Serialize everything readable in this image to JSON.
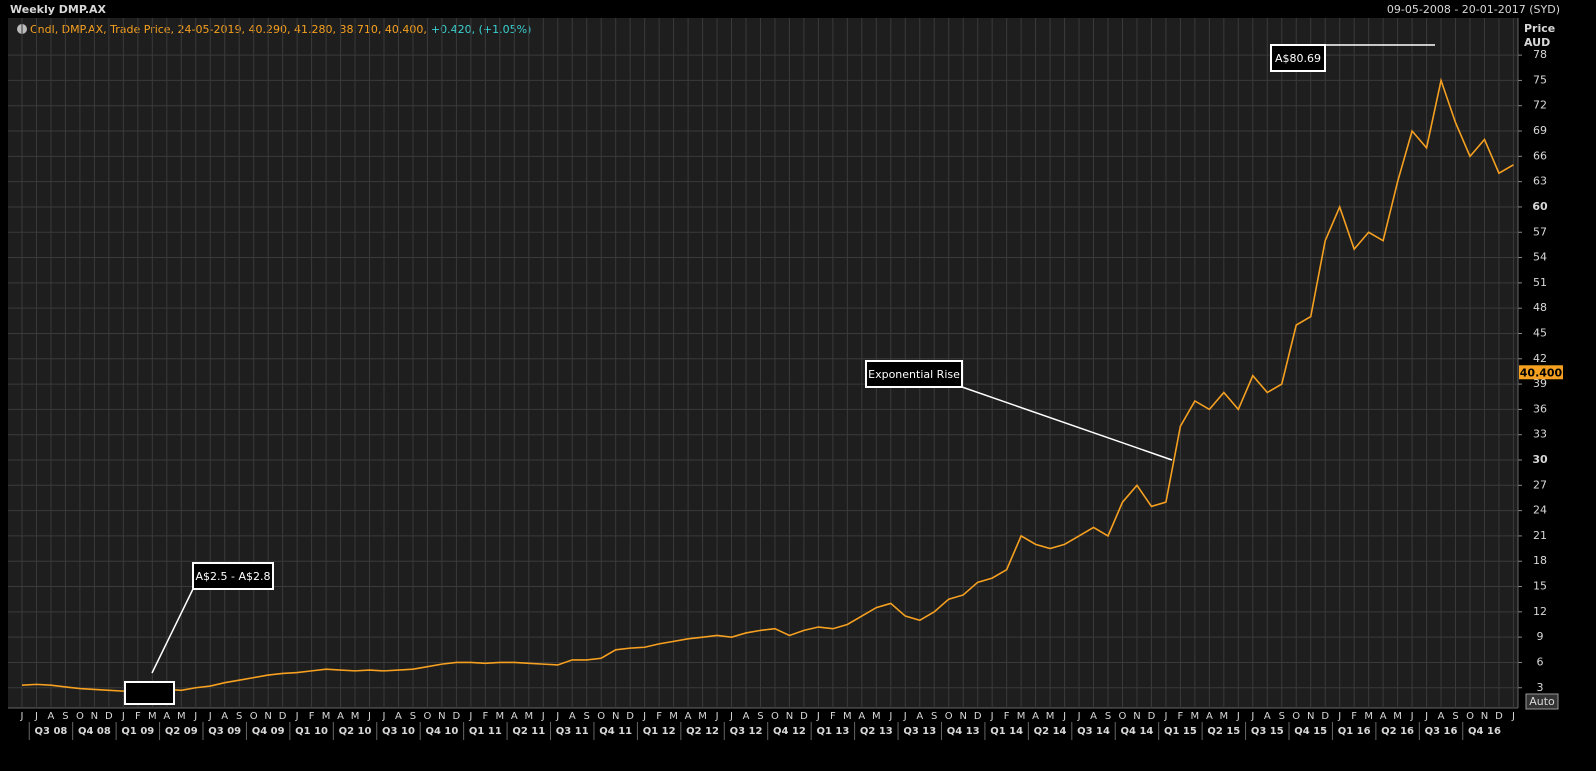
{
  "chart_data": {
    "type": "line",
    "title": "Weekly DMP.AX",
    "date_range": "09-05-2008 - 20-01-2017 (SYD)",
    "series": [
      {
        "name": "Cndl, DMP.AX, Trade Price, 24-05-2019, 40.290, 41.280, 38.710, 40.400,",
        "color": "#f5a020",
        "values": [
          3.3,
          3.4,
          3.3,
          3.1,
          2.9,
          2.8,
          2.7,
          2.6,
          2.7,
          2.8,
          2.8,
          2.7,
          3.0,
          3.2,
          3.6,
          3.9,
          4.2,
          4.5,
          4.7,
          4.8,
          5.0,
          5.2,
          5.1,
          5.0,
          5.1,
          5.0,
          5.1,
          5.2,
          5.5,
          5.8,
          6.0,
          6.0,
          5.9,
          6.0,
          6.0,
          5.9,
          5.8,
          5.7,
          6.3,
          6.3,
          6.5,
          7.5,
          7.7,
          7.8,
          8.2,
          8.5,
          8.8,
          9.0,
          9.2,
          9.0,
          9.5,
          9.8,
          10.0,
          9.2,
          9.8,
          10.2,
          10.0,
          10.5,
          11.5,
          12.5,
          13.0,
          11.5,
          11.0,
          12.0,
          13.5,
          14.0,
          15.5,
          16.0,
          17.0,
          21.0,
          20.0,
          19.5,
          20.0,
          21.0,
          22.0,
          21.0,
          25.0,
          27.0,
          24.5,
          25.0,
          34.0,
          37.0,
          36.0,
          38.0,
          36.0,
          40.0,
          38.0,
          39.0,
          46.0,
          47.0,
          56.0,
          60.0,
          55.0,
          57.0,
          56.0,
          63.0,
          69.0,
          67.0,
          75.0,
          70.0,
          66.0,
          68.0,
          64.0,
          65.0
        ]
      }
    ],
    "change_label": "+0.420, (+1.05%)",
    "categories": [
      "J",
      "J",
      "A",
      "S",
      "O",
      "N",
      "D",
      "J",
      "F",
      "M",
      "A",
      "M",
      "J",
      "J",
      "A",
      "S",
      "O",
      "N",
      "D",
      "J",
      "F",
      "M",
      "A",
      "M",
      "J",
      "J",
      "A",
      "S",
      "O",
      "N",
      "D",
      "J",
      "F",
      "M",
      "A",
      "M",
      "J",
      "J",
      "A",
      "S",
      "O",
      "N",
      "D",
      "J",
      "F",
      "M",
      "A",
      "M",
      "J",
      "J",
      "A",
      "S",
      "O",
      "N",
      "D",
      "J",
      "F",
      "M",
      "A",
      "M",
      "J",
      "J",
      "A",
      "S",
      "O",
      "N",
      "D",
      "J",
      "F",
      "M",
      "A",
      "M",
      "J",
      "J",
      "A",
      "S",
      "O",
      "N",
      "D",
      "J",
      "F",
      "M",
      "A",
      "M",
      "J",
      "J",
      "A",
      "S",
      "O",
      "N",
      "D",
      "J",
      "F",
      "M",
      "A",
      "M",
      "J",
      "J",
      "A",
      "S",
      "O",
      "N",
      "D",
      "J"
    ],
    "quarters": [
      "Q3 08",
      "Q4 08",
      "Q1 09",
      "Q2 09",
      "Q3 09",
      "Q4 09",
      "Q1 10",
      "Q2 10",
      "Q3 10",
      "Q4 10",
      "Q1 11",
      "Q2 11",
      "Q3 11",
      "Q4 11",
      "Q1 12",
      "Q2 12",
      "Q3 12",
      "Q4 12",
      "Q1 13",
      "Q2 13",
      "Q3 13",
      "Q4 13",
      "Q1 14",
      "Q2 14",
      "Q3 14",
      "Q4 14",
      "Q1 15",
      "Q2 15",
      "Q3 15",
      "Q4 15",
      "Q1 16",
      "Q2 16",
      "Q3 16",
      "Q4 16"
    ],
    "y_axis_label": "Price",
    "y_axis_unit": "AUD",
    "ylim": [
      0.6,
      82.4
    ],
    "yticks": [
      3,
      6,
      9,
      12,
      15,
      18,
      21,
      24,
      27,
      30,
      33,
      36,
      39,
      42,
      45,
      48,
      51,
      54,
      57,
      60,
      63,
      66,
      69,
      72,
      75,
      78
    ],
    "last_price": {
      "value": 40.4,
      "label": "40.400"
    },
    "grid": true,
    "annotations": [
      "A$2.5 - A$2.8",
      "Exponential Rise",
      "A$80.69"
    ],
    "button": "Auto"
  }
}
